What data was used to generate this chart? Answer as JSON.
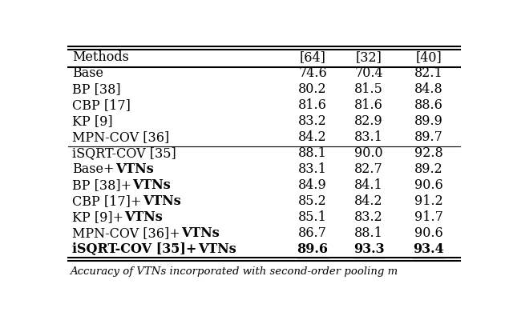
{
  "caption": "Accuracy of VTNs incorporated with second-order pooling m",
  "col_headers": [
    "Methods",
    "[64]",
    "[32]",
    "[40]"
  ],
  "rows": [
    {
      "method": "Base",
      "suffix": "",
      "bold_method": false,
      "values": [
        "74.6",
        "70.4",
        "82.1"
      ],
      "bold_values": [
        false,
        false,
        false
      ],
      "underline_values": [
        false,
        false,
        false
      ]
    },
    {
      "method": "BP [38]",
      "suffix": "",
      "bold_method": false,
      "values": [
        "80.2",
        "81.5",
        "84.8"
      ],
      "bold_values": [
        false,
        false,
        false
      ],
      "underline_values": [
        false,
        false,
        false
      ]
    },
    {
      "method": "CBP [17]",
      "suffix": "",
      "bold_method": false,
      "values": [
        "81.6",
        "81.6",
        "88.6"
      ],
      "bold_values": [
        false,
        false,
        false
      ],
      "underline_values": [
        false,
        false,
        false
      ]
    },
    {
      "method": "KP [9]",
      "suffix": "",
      "bold_method": false,
      "values": [
        "83.2",
        "82.9",
        "89.9"
      ],
      "bold_values": [
        false,
        false,
        false
      ],
      "underline_values": [
        false,
        false,
        false
      ]
    },
    {
      "method": "MPN-COV [36]",
      "suffix": "",
      "bold_method": false,
      "values": [
        "84.2",
        "83.1",
        "89.7"
      ],
      "bold_values": [
        false,
        false,
        false
      ],
      "underline_values": [
        false,
        false,
        false
      ]
    },
    {
      "method": "iSQRT-COV [35]",
      "suffix": "",
      "bold_method": false,
      "values": [
        "88.1",
        "90.0",
        "92.8"
      ],
      "bold_values": [
        false,
        false,
        false
      ],
      "underline_values": [
        false,
        false,
        false
      ]
    },
    {
      "method": "Base+",
      "suffix": "VTNs",
      "bold_method": false,
      "values": [
        "83.1",
        "82.7",
        "89.2"
      ],
      "bold_values": [
        false,
        false,
        false
      ],
      "underline_values": [
        false,
        false,
        false
      ]
    },
    {
      "method": "BP [38]+",
      "suffix": "VTNs",
      "bold_method": false,
      "values": [
        "84.9",
        "84.1",
        "90.6"
      ],
      "bold_values": [
        false,
        false,
        false
      ],
      "underline_values": [
        false,
        false,
        false
      ]
    },
    {
      "method": "CBP [17]+",
      "suffix": "VTNs",
      "bold_method": false,
      "values": [
        "85.2",
        "84.2",
        "91.2"
      ],
      "bold_values": [
        false,
        false,
        false
      ],
      "underline_values": [
        false,
        false,
        false
      ]
    },
    {
      "method": "KP [9]+",
      "suffix": "VTNs",
      "bold_method": false,
      "values": [
        "85.1",
        "83.2",
        "91.7"
      ],
      "bold_values": [
        false,
        false,
        false
      ],
      "underline_values": [
        false,
        false,
        false
      ]
    },
    {
      "method": "MPN-COV [36]+",
      "suffix": "VTNs",
      "bold_method": false,
      "values": [
        "86.7",
        "88.1",
        "90.6"
      ],
      "bold_values": [
        false,
        false,
        false
      ],
      "underline_values": [
        false,
        false,
        false
      ]
    },
    {
      "method": "iSQRT-COV [35]+",
      "suffix": "VTNs",
      "bold_method": true,
      "values": [
        "89.6",
        "93.3",
        "93.4"
      ],
      "bold_values": [
        true,
        true,
        true
      ],
      "underline_values": [
        true,
        true,
        true
      ]
    }
  ],
  "separator_after_row": 5,
  "bg_color": "#ffffff",
  "text_color": "#000000",
  "font_size": 11.5,
  "header_font_size": 11.5
}
